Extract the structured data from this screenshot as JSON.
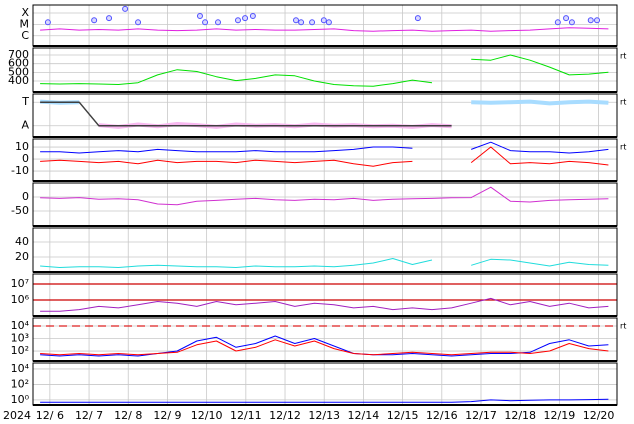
{
  "chart_data": [
    {
      "type": "line",
      "xlim": [
        5.57,
        20.47
      ],
      "xticks": [
        6,
        7,
        8,
        9,
        10,
        11,
        12,
        13,
        14,
        15,
        16,
        17,
        18,
        19,
        20
      ],
      "ylim": [
        -6.9,
        -3.3
      ],
      "yticks": [
        {
          "value": -4,
          "label": "X"
        },
        {
          "value": -5,
          "label": "M"
        },
        {
          "value": -6,
          "label": "C"
        }
      ],
      "x": [
        5.75,
        6.25,
        6.75,
        7.25,
        7.75,
        8.25,
        8.75,
        9.25,
        9.75,
        10.25,
        10.75,
        11.25,
        11.75,
        12.25,
        12.75,
        13.25,
        13.75,
        14.25,
        14.75,
        15.25,
        15.75,
        16.25,
        16.75,
        17.25,
        17.75,
        18.25,
        18.75,
        19.25,
        19.75,
        20.25
      ],
      "series": [
        {
          "color": "#e020e0",
          "values": [
            -5.5,
            -5.4,
            -5.5,
            -5.45,
            -5.5,
            -5.4,
            -5.5,
            -5.55,
            -5.5,
            -5.4,
            -5.5,
            -5.45,
            -5.5,
            -5.5,
            -5.45,
            -5.4,
            -5.55,
            -5.6,
            -5.55,
            -5.5,
            -5.6,
            -5.55,
            -5.5,
            -5.6,
            -5.55,
            -5.5,
            -5.4,
            -5.3,
            -5.35,
            -5.4
          ]
        }
      ],
      "markers": {
        "color": "#5050ff",
        "x": [
          5.95,
          7.13,
          7.51,
          7.92,
          8.25,
          9.83,
          9.96,
          10.29,
          10.8,
          10.98,
          11.18,
          12.28,
          12.41,
          12.69,
          12.99,
          13.12,
          15.39,
          18.96,
          19.17,
          19.32,
          19.8,
          19.96
        ],
        "values": [
          -4.82,
          -4.64,
          -4.45,
          -3.64,
          -4.82,
          -4.27,
          -4.82,
          -4.82,
          -4.64,
          -4.45,
          -4.27,
          -4.64,
          -4.82,
          -4.82,
          -4.64,
          -4.82,
          -4.45,
          -4.82,
          -4.45,
          -4.82,
          -4.64,
          -4.64
        ]
      }
    },
    {
      "type": "line",
      "xlim": [
        5.57,
        20.47
      ],
      "xticks": [
        6,
        7,
        8,
        9,
        10,
        11,
        12,
        13,
        14,
        15,
        16,
        17,
        18,
        19,
        20
      ],
      "ylim": [
        273,
        781
      ],
      "yticks": [
        400,
        500,
        600,
        700
      ],
      "rt_label": "rt",
      "x": [
        5.75,
        6.25,
        6.75,
        7.25,
        7.75,
        8.25,
        8.75,
        9.25,
        9.75,
        10.25,
        10.75,
        11.25,
        11.75,
        12.25,
        12.75,
        13.25,
        13.75,
        14.25,
        14.75,
        15.25,
        15.75,
        16.25,
        16.75,
        17.25,
        17.75,
        18.25,
        18.75,
        19.25,
        19.75,
        20.25
      ],
      "series": [
        {
          "color": "#00e000",
          "values": [
            370,
            365,
            370,
            365,
            360,
            380,
            470,
            530,
            510,
            450,
            405,
            430,
            470,
            460,
            400,
            360,
            345,
            340,
            370,
            410,
            380,
            null,
            650,
            640,
            700,
            640,
            560,
            470,
            480,
            500
          ]
        }
      ]
    },
    {
      "type": "line",
      "xlim": [
        5.57,
        20.47
      ],
      "xticks": [
        6,
        7,
        8,
        9,
        10,
        11,
        12,
        13,
        14,
        15,
        16,
        17,
        18,
        19,
        20
      ],
      "ylim": [
        -1.96,
        1.7
      ],
      "yticks": [
        {
          "value": 1,
          "label": "T"
        },
        {
          "value": -1,
          "label": "A"
        }
      ],
      "rt_label": "rt",
      "x": [
        5.75,
        6.25,
        6.75,
        7.25,
        7.75,
        8.25,
        8.75,
        9.25,
        9.75,
        10.25,
        10.75,
        11.25,
        11.75,
        12.25,
        12.75,
        13.25,
        13.75,
        14.25,
        14.75,
        15.25,
        15.75,
        16.25,
        16.75,
        17.25,
        17.75,
        18.25,
        18.75,
        19.25,
        19.75,
        20.25
      ],
      "series": [
        {
          "color": "#a8dcff",
          "width": 4,
          "values": [
            1.05,
            0.95,
            1.0,
            null,
            null,
            null,
            null,
            null,
            null,
            null,
            null,
            null,
            null,
            null,
            null,
            null,
            null,
            null,
            null,
            null,
            null,
            null,
            1.0,
            0.95,
            1.0,
            1.05,
            0.9,
            1.0,
            1.05,
            0.95
          ]
        },
        {
          "color": "#f8b8f0",
          "width": 4,
          "values": [
            null,
            null,
            null,
            -0.95,
            -1.1,
            -0.9,
            -1.05,
            -0.85,
            -0.95,
            -1.1,
            -0.9,
            -1.0,
            -0.95,
            -1.05,
            -0.9,
            -1.0,
            -0.95,
            -1.05,
            -1.0,
            -1.1,
            -0.95,
            -1.05,
            null,
            null,
            null,
            null,
            null,
            null,
            null,
            null
          ]
        },
        {
          "color": "#404040",
          "width": 1.5,
          "values": [
            1,
            1,
            1,
            -1,
            -1,
            -1,
            -1,
            -1,
            -1,
            -1,
            -1,
            -1,
            -1,
            -1,
            -1,
            -1,
            -1,
            -1,
            -1,
            -1,
            -1,
            -1,
            null,
            null,
            null,
            null,
            null,
            null,
            null,
            null
          ]
        }
      ]
    },
    {
      "type": "line",
      "xlim": [
        5.57,
        20.47
      ],
      "xticks": [
        6,
        7,
        8,
        9,
        10,
        11,
        12,
        13,
        14,
        15,
        16,
        17,
        18,
        19,
        20
      ],
      "ylim": [
        -18.3,
        16.7
      ],
      "yticks": [
        10,
        0,
        -10
      ],
      "rt_label": "rt",
      "x": [
        5.75,
        6.25,
        6.75,
        7.25,
        7.75,
        8.25,
        8.75,
        9.25,
        9.75,
        10.25,
        10.75,
        11.25,
        11.75,
        12.25,
        12.75,
        13.25,
        13.75,
        14.25,
        14.75,
        15.25,
        15.75,
        16.25,
        16.75,
        17.25,
        17.75,
        18.25,
        18.75,
        19.25,
        19.75,
        20.25
      ],
      "series": [
        {
          "color": "#0000ff",
          "values": [
            6,
            6,
            5,
            6,
            7,
            6,
            8,
            7,
            6,
            6,
            6,
            7,
            6,
            6,
            6,
            7,
            8,
            10,
            10,
            9,
            null,
            null,
            8,
            14,
            7,
            6,
            6,
            5,
            6,
            8
          ]
        },
        {
          "color": "#ff0000",
          "values": [
            -2,
            -1,
            -2,
            -3,
            -2,
            -4,
            -1,
            -3,
            -2,
            -2,
            -3,
            -1,
            -2,
            -3,
            -2,
            -1,
            -4,
            -6,
            -3,
            -2,
            null,
            null,
            -3,
            10,
            -4,
            -3,
            -4,
            -2,
            -3,
            -5
          ]
        }
      ]
    },
    {
      "type": "line",
      "xlim": [
        5.57,
        20.47
      ],
      "xticks": [
        6,
        7,
        8,
        9,
        10,
        11,
        12,
        13,
        14,
        15,
        16,
        17,
        18,
        19,
        20
      ],
      "ylim": [
        -103.6,
        50
      ],
      "yticks": [
        0,
        -50
      ],
      "x": [
        5.75,
        6.25,
        6.75,
        7.25,
        7.75,
        8.25,
        8.75,
        9.25,
        9.75,
        10.25,
        10.75,
        11.25,
        11.75,
        12.25,
        12.75,
        13.25,
        13.75,
        14.25,
        14.75,
        15.25,
        15.75,
        16.25,
        16.75,
        17.25,
        17.75,
        18.25,
        18.75,
        19.25,
        19.75,
        20.25
      ],
      "series": [
        {
          "color": "#d030d0",
          "values": [
            -3,
            -5,
            -2,
            -8,
            -6,
            -10,
            -25,
            -28,
            -15,
            -12,
            -8,
            -5,
            -10,
            -12,
            -8,
            -10,
            -5,
            -12,
            -8,
            -6,
            -5,
            -3,
            -2,
            35,
            -15,
            -18,
            -12,
            -10,
            -8,
            -6
          ]
        }
      ]
    },
    {
      "type": "line",
      "xlim": [
        5.57,
        20.47
      ],
      "xticks": [
        6,
        7,
        8,
        9,
        10,
        11,
        12,
        13,
        14,
        15,
        16,
        17,
        18,
        19,
        20
      ],
      "ylim": [
        0,
        58.7
      ],
      "yticks": [
        40,
        20
      ],
      "x": [
        5.75,
        6.25,
        6.75,
        7.25,
        7.75,
        8.25,
        8.75,
        9.25,
        9.75,
        10.25,
        10.75,
        11.25,
        11.75,
        12.25,
        12.75,
        13.25,
        13.75,
        14.25,
        14.75,
        15.25,
        15.75,
        16.25,
        16.75,
        17.25,
        17.75,
        18.25,
        18.75,
        19.25,
        19.75,
        20.25
      ],
      "series": [
        {
          "color": "#20dcdc",
          "values": [
            8,
            6,
            7,
            7,
            6,
            8,
            9,
            8,
            7,
            7,
            6,
            8,
            7,
            7,
            8,
            7,
            9,
            12,
            18,
            10,
            16,
            null,
            9,
            17,
            16,
            12,
            8,
            13,
            10,
            9
          ]
        }
      ]
    },
    {
      "type": "line",
      "log": true,
      "xlim": [
        5.57,
        20.47
      ],
      "xticks": [
        6,
        7,
        8,
        9,
        10,
        11,
        12,
        13,
        14,
        15,
        16,
        17,
        18,
        19,
        20
      ],
      "ylim": [
        100000,
        42000000
      ],
      "yticks": [
        {
          "value": 10000000,
          "label": "10⁷"
        },
        {
          "value": 1000000,
          "label": "10⁶"
        }
      ],
      "reference_lines": [
        10000000,
        1000000
      ],
      "reference_color": "#cc0000",
      "reference_dash": false,
      "x": [
        5.75,
        6.25,
        6.75,
        7.25,
        7.75,
        8.25,
        8.75,
        9.25,
        9.75,
        10.25,
        10.75,
        11.25,
        11.75,
        12.25,
        12.75,
        13.25,
        13.75,
        14.25,
        14.75,
        15.25,
        15.75,
        16.25,
        16.75,
        17.25,
        17.75,
        18.25,
        18.75,
        19.25,
        19.75,
        20.25
      ],
      "series": [
        {
          "color": "#a020c0",
          "values": [
            200000,
            200000,
            250000,
            400000,
            320000,
            500000,
            800000,
            630000,
            400000,
            800000,
            500000,
            630000,
            800000,
            400000,
            630000,
            500000,
            320000,
            400000,
            250000,
            320000,
            250000,
            320000,
            630000,
            1260000,
            500000,
            800000,
            400000,
            630000,
            320000,
            400000
          ]
        }
      ]
    },
    {
      "type": "line",
      "log": true,
      "xlim": [
        5.57,
        20.47
      ],
      "xticks": [
        6,
        7,
        8,
        9,
        10,
        11,
        12,
        13,
        14,
        15,
        16,
        17,
        18,
        19,
        20
      ],
      "ylim": [
        16,
        43600
      ],
      "yticks": [
        {
          "value": 10000,
          "label": "10⁴"
        },
        {
          "value": 1000,
          "label": "10³"
        },
        {
          "value": 100,
          "label": "10²"
        }
      ],
      "rt_label": "rt",
      "reference_lines": [
        10000
      ],
      "reference_color": "#dd2020",
      "reference_dash": true,
      "x": [
        5.75,
        6.25,
        6.75,
        7.25,
        7.75,
        8.25,
        8.75,
        9.25,
        9.75,
        10.25,
        10.75,
        11.25,
        11.75,
        12.25,
        12.75,
        13.25,
        13.75,
        14.25,
        14.75,
        15.25,
        15.75,
        16.25,
        16.75,
        17.25,
        17.75,
        18.25,
        18.75,
        19.25,
        19.75,
        20.25
      ],
      "series": [
        {
          "color": "#0000ff",
          "values": [
            50,
            40,
            50,
            40,
            50,
            40,
            63,
            100,
            631,
            1259,
            200,
            398,
            1585,
            398,
            1000,
            251,
            63,
            50,
            50,
            63,
            50,
            40,
            50,
            63,
            63,
            79,
            398,
            794,
            251,
            316
          ]
        },
        {
          "color": "#ff0000",
          "values": [
            63,
            50,
            63,
            50,
            63,
            50,
            63,
            79,
            316,
            631,
            100,
            200,
            794,
            251,
            631,
            158,
            63,
            50,
            63,
            79,
            63,
            50,
            63,
            79,
            79,
            63,
            100,
            398,
            158,
            100
          ]
        }
      ]
    },
    {
      "type": "line",
      "log": true,
      "xlim": [
        5.57,
        20.47
      ],
      "year_label": "2024",
      "xticks": [
        {
          "value": 6,
          "label": "12/ 6"
        },
        {
          "value": 7,
          "label": "12/ 7"
        },
        {
          "value": 8,
          "label": "12/ 8"
        },
        {
          "value": 9,
          "label": "12/ 9"
        },
        {
          "value": 10,
          "label": "12/10"
        },
        {
          "value": 11,
          "label": "12/11"
        },
        {
          "value": 12,
          "label": "12/12"
        },
        {
          "value": 13,
          "label": "12/13"
        },
        {
          "value": 14,
          "label": "12/14"
        },
        {
          "value": 15,
          "label": "12/15"
        },
        {
          "value": 16,
          "label": "12/16"
        },
        {
          "value": 17,
          "label": "12/17"
        },
        {
          "value": 18,
          "label": "12/18"
        },
        {
          "value": 19,
          "label": "12/19"
        },
        {
          "value": 20,
          "label": "12/20"
        }
      ],
      "ylim": [
        0.22,
        58900
      ],
      "yticks": [
        {
          "value": 10000,
          "label": "10⁴"
        },
        {
          "value": 100,
          "label": "10²"
        },
        {
          "value": 1,
          "label": "10⁰"
        }
      ],
      "x": [
        5.75,
        6.25,
        6.75,
        7.25,
        7.75,
        8.25,
        8.75,
        9.25,
        9.75,
        10.25,
        10.75,
        11.25,
        11.75,
        12.25,
        12.75,
        13.25,
        13.75,
        14.25,
        14.75,
        15.25,
        15.75,
        16.25,
        16.75,
        17.25,
        17.75,
        18.25,
        18.75,
        19.25,
        19.75,
        20.25
      ],
      "series": [
        {
          "color": "#0000ff",
          "values": [
            0.5,
            0.5,
            0.5,
            0.5,
            0.5,
            0.5,
            0.5,
            0.5,
            0.5,
            0.5,
            0.5,
            0.5,
            0.5,
            0.5,
            0.5,
            0.5,
            0.5,
            0.5,
            0.5,
            0.5,
            0.5,
            0.5,
            0.6,
            1.0,
            0.8,
            0.9,
            1.0,
            1.0,
            1.1,
            1.2
          ]
        }
      ]
    }
  ]
}
